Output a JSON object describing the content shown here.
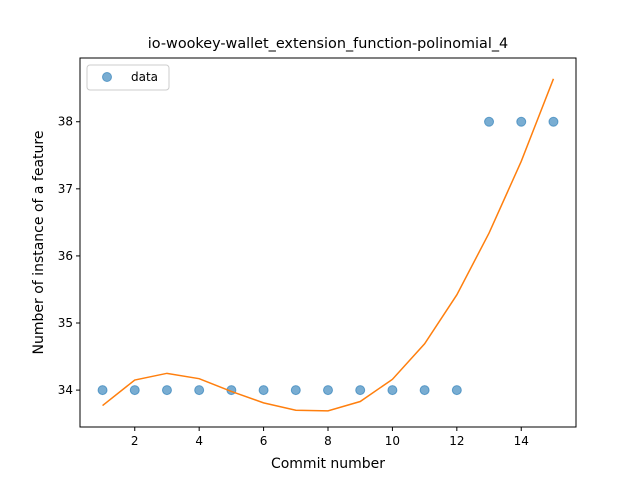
{
  "chart_data": {
    "type": "scatter",
    "title": "io-wookey-wallet_extension_function-polinomial_4",
    "xlabel": "Commit number",
    "ylabel": "Number of instance of a feature",
    "xlim": [
      0.3,
      15.7
    ],
    "ylim": [
      33.45,
      38.95
    ],
    "x_ticks": [
      2,
      4,
      6,
      8,
      10,
      12,
      14
    ],
    "y_ticks": [
      34,
      35,
      36,
      37,
      38
    ],
    "grid": false,
    "legend": {
      "position": "top-left",
      "entries": [
        "data"
      ]
    },
    "colors": {
      "data": "#1f77b4",
      "fit": "#ff7f0e"
    },
    "series": [
      {
        "name": "data",
        "kind": "scatter",
        "x": [
          1,
          2,
          3,
          4,
          5,
          6,
          7,
          8,
          9,
          10,
          11,
          12,
          13,
          14,
          15
        ],
        "y": [
          34,
          34,
          34,
          34,
          34,
          34,
          34,
          34,
          34,
          34,
          34,
          34,
          38,
          38,
          38
        ]
      },
      {
        "kind": "line",
        "x": [
          1,
          2,
          3,
          4,
          5,
          6,
          7,
          8,
          9,
          10,
          11,
          12,
          13,
          14,
          15
        ],
        "y": [
          33.77,
          34.15,
          34.25,
          34.17,
          33.98,
          33.81,
          33.7,
          33.69,
          33.83,
          34.16,
          34.69,
          35.42,
          36.34,
          37.41,
          38.64
        ]
      }
    ]
  }
}
